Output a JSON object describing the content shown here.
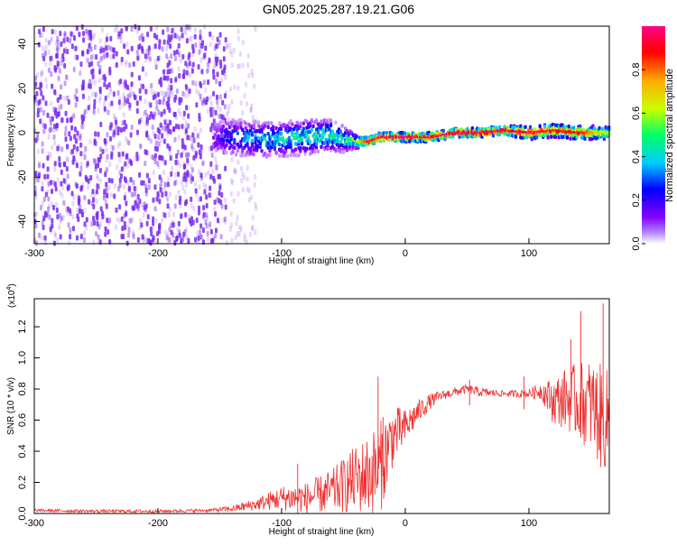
{
  "title": "GN05.2025.287.19.21.G06",
  "colors": {
    "snr_line": "#ee3030",
    "spectrogram_scatter": "#7a2cf0",
    "colormap": [
      "#ffffff",
      "#8800ff",
      "#0000ff",
      "#00ccff",
      "#00ff66",
      "#ccff00",
      "#ffaa00",
      "#ff0000",
      "#ff0088"
    ]
  },
  "chart_data": [
    {
      "type": "heatmap",
      "name": "spectrogram",
      "xlabel": "Height of straight line (km)",
      "ylabel": "Frequency (Hz)",
      "xlim": [
        -300,
        165
      ],
      "ylim": [
        -50,
        48
      ],
      "xticks": [
        -300,
        -200,
        -100,
        0,
        100
      ],
      "yticks": [
        -40,
        -20,
        0,
        20,
        40
      ],
      "grid": false,
      "ridge": {
        "x": [
          -155,
          -140,
          -120,
          -100,
          -80,
          -60,
          -50,
          -40,
          -30,
          -20,
          0,
          20,
          40,
          60,
          80,
          100,
          120,
          140,
          165
        ],
        "freq_hz": [
          -2,
          -2,
          -3,
          -3,
          -2,
          -1,
          -3,
          -4,
          -4,
          -2,
          -2,
          -2,
          0,
          0,
          1,
          0,
          1,
          0,
          0
        ],
        "peak_amplitude": [
          0.15,
          0.3,
          0.4,
          0.45,
          0.5,
          0.55,
          0.5,
          0.6,
          0.95,
          0.95,
          1.0,
          0.95,
          0.95,
          1.0,
          0.95,
          0.95,
          0.9,
          0.9,
          0.6
        ],
        "spread_hz": [
          9,
          9,
          8,
          8,
          8,
          7,
          6,
          3,
          2,
          2,
          2,
          2,
          2,
          2,
          2,
          3,
          3,
          3,
          3
        ]
      },
      "noise": {
        "dense_x_range": [
          -300,
          -145
        ],
        "sparse_x_range": [
          -145,
          -120
        ],
        "amplitude": 0.1
      },
      "colorbar": {
        "label": "Normalized spectral amplitude",
        "range": [
          0,
          1
        ],
        "ticks": [
          "0.0",
          "0.2",
          "0.4",
          "0.6",
          "0.8"
        ],
        "tick_values": [
          0,
          0.2,
          0.4,
          0.6,
          0.8
        ]
      }
    },
    {
      "type": "line",
      "name": "snr",
      "xlabel": "Height of straight line (km)",
      "ylabel": "SNR (10 * v/v)",
      "exponent_label": "(x10",
      "exponent_power": "4",
      "exponent_close": ")",
      "xlim": [
        -300,
        165
      ],
      "ylim": [
        0,
        1.38
      ],
      "xticks": [
        -300,
        -200,
        -100,
        0,
        100
      ],
      "yticks": [
        0.0,
        0.2,
        0.4,
        0.6,
        0.8,
        1.0,
        1.2
      ],
      "ytick_labels": [
        "0.0",
        "0.2",
        "0.4",
        "0.6",
        "0.8",
        "1.0",
        "1.2"
      ],
      "grid": false,
      "series": [
        {
          "name": "SNR",
          "x": [
            -300,
            -250,
            -200,
            -160,
            -140,
            -120,
            -100,
            -80,
            -60,
            -40,
            -30,
            -20,
            -10,
            0,
            10,
            20,
            30,
            40,
            50,
            60,
            80,
            100,
            110,
            120,
            130,
            140,
            150,
            160,
            165
          ],
          "y": [
            0.02,
            0.015,
            0.015,
            0.02,
            0.03,
            0.06,
            0.1,
            0.1,
            0.14,
            0.22,
            0.25,
            0.3,
            0.5,
            0.55,
            0.65,
            0.72,
            0.76,
            0.78,
            0.8,
            0.78,
            0.77,
            0.77,
            0.79,
            0.72,
            0.74,
            0.72,
            0.7,
            0.6,
            0.62
          ],
          "spread": [
            0.01,
            0.01,
            0.01,
            0.01,
            0.02,
            0.04,
            0.08,
            0.1,
            0.14,
            0.22,
            0.26,
            0.3,
            0.2,
            0.12,
            0.08,
            0.05,
            0.03,
            0.03,
            0.03,
            0.03,
            0.02,
            0.03,
            0.06,
            0.15,
            0.2,
            0.25,
            0.3,
            0.35,
            0.3
          ],
          "spikes": [
            {
              "x": -87,
              "y": 0.32
            },
            {
              "x": -22,
              "y": 0.88
            },
            {
              "x": -18,
              "y": 0.62
            },
            {
              "x": 52,
              "y": 0.86
            },
            {
              "x": 96,
              "y": 0.88
            },
            {
              "x": 134,
              "y": 1.12
            },
            {
              "x": 142,
              "y": 1.3
            },
            {
              "x": 160,
              "y": 1.35
            }
          ]
        }
      ]
    }
  ]
}
